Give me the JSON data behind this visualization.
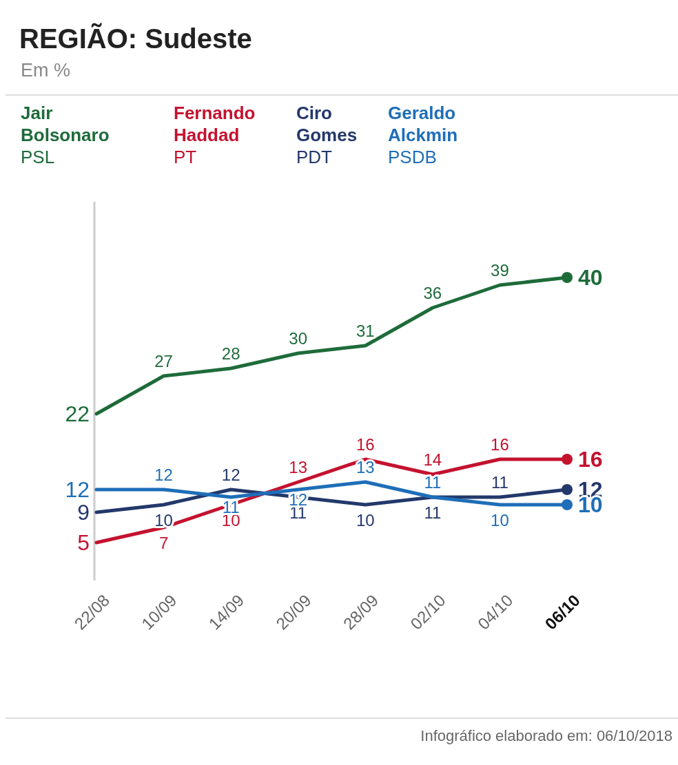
{
  "chart_data": {
    "type": "line",
    "title": "REGIÃO: Sudeste",
    "subtitle": "Em %",
    "categories": [
      "22/08",
      "10/09",
      "14/09",
      "20/09",
      "28/09",
      "02/10",
      "04/10",
      "06/10"
    ],
    "series": [
      {
        "name": "Jair Bolsonaro PSL",
        "color": "#1e6b3a",
        "values": [
          22,
          27,
          28,
          30,
          31,
          36,
          39,
          40
        ]
      },
      {
        "name": "Fernando Haddad PT",
        "color": "#c4122f",
        "values": [
          5,
          7,
          10,
          13,
          16,
          14,
          16,
          16
        ]
      },
      {
        "name": "Ciro Gomes PDT",
        "color": "#23386b",
        "values": [
          9,
          10,
          12,
          11,
          10,
          11,
          11,
          12
        ]
      },
      {
        "name": "Geraldo Alckmin PSDB",
        "color": "#1e6eb8",
        "values": [
          12,
          12,
          11,
          12,
          13,
          11,
          10,
          10
        ]
      }
    ],
    "ylim": [
      0,
      50
    ],
    "tick_labels": "x",
    "legend": "top left",
    "data_labels": true,
    "line_style": "solid",
    "annotations": [
      "Infográfico elaborado em: 06/10/2018"
    ]
  }
}
